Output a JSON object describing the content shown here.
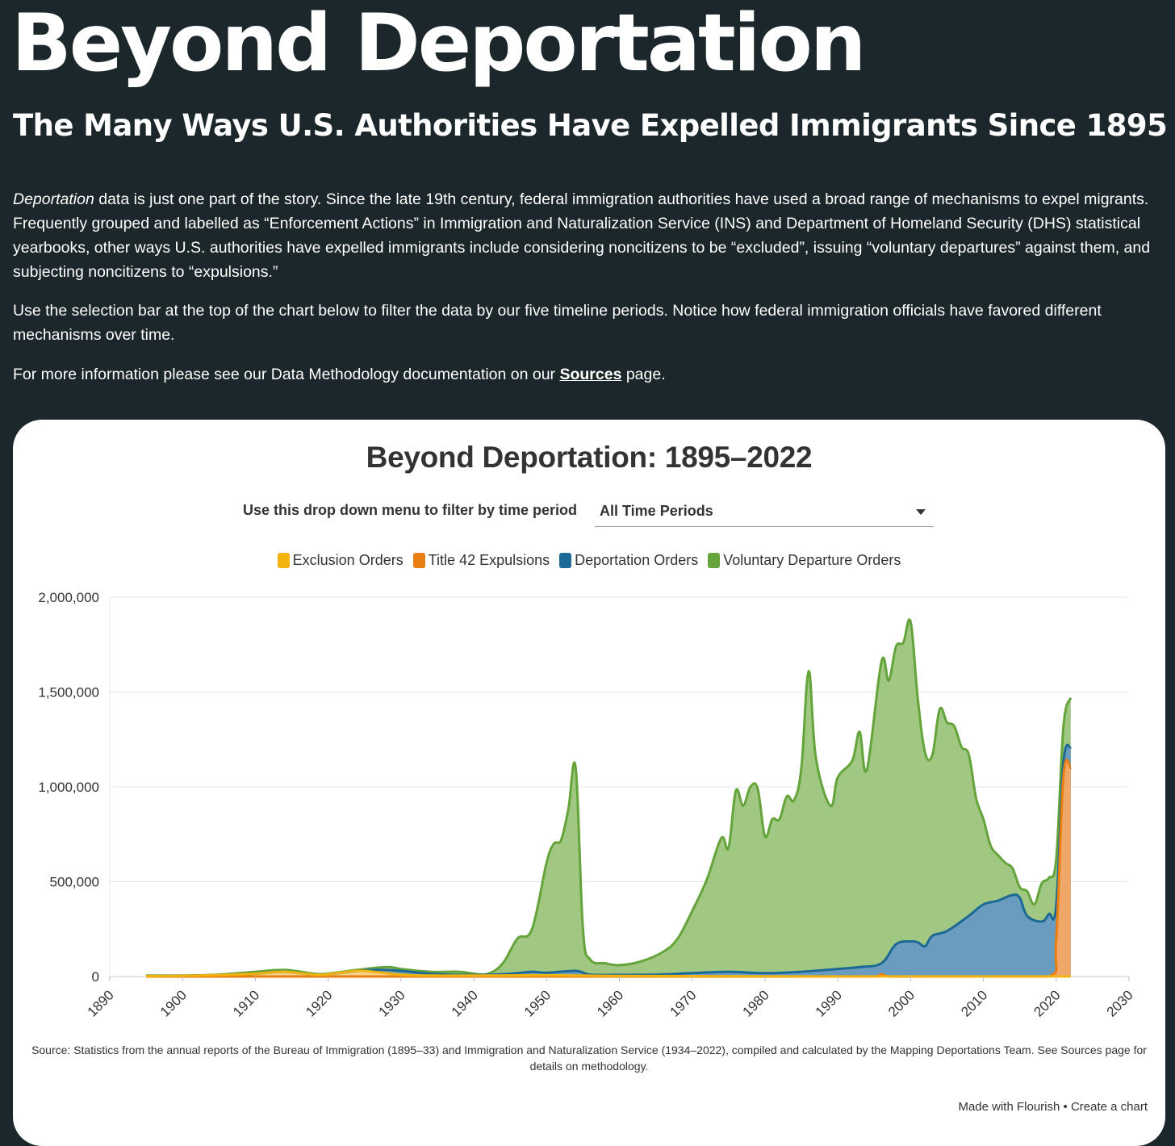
{
  "page": {
    "title": "Beyond Deportation",
    "subtitle": "The Many Ways U.S. Authorities Have Expelled Immigrants Since 1895",
    "intro": {
      "p1_em": "Deportation",
      "p1_rest": " data is just one part of the story. Since the late 19th century, federal immigration authorities have used a broad range of mechanisms to expel migrants. Frequently grouped and labelled as “Enforcement Actions” in Immigration and Naturalization Service (INS) and Department of Homeland Security (DHS) statistical yearbooks, other ways U.S. authorities have expelled immigrants include considering noncitizens to be “excluded”, issuing “voluntary departures” against them, and subjecting noncitizens to “expulsions.”",
      "p2": "Use the selection bar at the top of the chart below to filter the data by our five timeline periods. Notice how federal immigration officials have favored different mechanisms over time.",
      "p3_before": "For more information please see our Data Methodology documentation on our ",
      "p3_link": "Sources",
      "p3_after": " page."
    }
  },
  "filter": {
    "label": "Use this drop down menu to filter by time period",
    "selected": "All Time Periods"
  },
  "credit": {
    "made_with": "Made with Flourish",
    "separator": "•",
    "create": "Create a chart"
  },
  "chart_data": {
    "type": "area",
    "title": "Beyond Deportation: 1895–2022",
    "xlabel": "",
    "ylabel": "",
    "xlim": [
      1890,
      2030
    ],
    "ylim": [
      0,
      2000000
    ],
    "x_ticks": [
      1890,
      1900,
      1910,
      1920,
      1930,
      1940,
      1950,
      1960,
      1970,
      1980,
      1990,
      2000,
      2010,
      2020,
      2030
    ],
    "y_ticks": [
      0,
      500000,
      1000000,
      1500000,
      2000000
    ],
    "y_tick_labels": [
      "0",
      "500,000",
      "1,000,000",
      "1,500,000",
      "2,000,000"
    ],
    "grid": true,
    "stacked": true,
    "legend_position": "top",
    "source": "Source: Statistics from the annual reports of the Bureau of Immigration (1895–33) and Immigration and Naturalization Service (1934–2022), compiled and calculated by the Mapping Deportations Team. See Sources page for details on methodology.",
    "series": [
      {
        "name": "Exclusion Orders",
        "color": "#f3b30e",
        "fill": "#f3d389",
        "points": [
          [
            1895,
            2000
          ],
          [
            1900,
            4000
          ],
          [
            1905,
            8000
          ],
          [
            1910,
            15000
          ],
          [
            1914,
            25000
          ],
          [
            1918,
            10000
          ],
          [
            1920,
            12000
          ],
          [
            1924,
            30000
          ],
          [
            1927,
            22000
          ],
          [
            1930,
            10000
          ],
          [
            1934,
            5000
          ],
          [
            1940,
            5000
          ],
          [
            1945,
            6000
          ],
          [
            1950,
            7000
          ],
          [
            1955,
            5000
          ],
          [
            1960,
            3000
          ],
          [
            1970,
            2000
          ],
          [
            1980,
            1000
          ],
          [
            1990,
            500
          ],
          [
            2000,
            1000
          ],
          [
            2010,
            500
          ],
          [
            2017,
            500
          ],
          [
            2022,
            500
          ]
        ]
      },
      {
        "name": "Title 42 Expulsions",
        "color": "#e97e12",
        "fill": "#f0a868",
        "points": [
          [
            1895,
            0
          ],
          [
            1900,
            0
          ],
          [
            1905,
            0
          ],
          [
            1910,
            0
          ],
          [
            1914,
            0
          ],
          [
            1918,
            0
          ],
          [
            1920,
            0
          ],
          [
            1924,
            0
          ],
          [
            1927,
            0
          ],
          [
            1930,
            0
          ],
          [
            1934,
            0
          ],
          [
            1940,
            0
          ],
          [
            1945,
            0
          ],
          [
            1950,
            0
          ],
          [
            1955,
            0
          ],
          [
            1960,
            0
          ],
          [
            1970,
            0
          ],
          [
            1980,
            0
          ],
          [
            1990,
            0
          ],
          [
            1995,
            0
          ],
          [
            1996,
            12000
          ],
          [
            1997,
            0
          ],
          [
            2000,
            0
          ],
          [
            2010,
            0
          ],
          [
            2019,
            0
          ],
          [
            2020,
            200000
          ],
          [
            2021,
            1060000
          ],
          [
            2022,
            1100000
          ]
        ]
      },
      {
        "name": "Deportation Orders",
        "color": "#1d6995",
        "fill": "#6a9cbf",
        "points": [
          [
            1895,
            2000
          ],
          [
            1900,
            4000
          ],
          [
            1905,
            8000
          ],
          [
            1910,
            15000
          ],
          [
            1914,
            25000
          ],
          [
            1918,
            10000
          ],
          [
            1920,
            12000
          ],
          [
            1924,
            30000
          ],
          [
            1927,
            35000
          ],
          [
            1930,
            30000
          ],
          [
            1934,
            15000
          ],
          [
            1940,
            8000
          ],
          [
            1945,
            15000
          ],
          [
            1948,
            25000
          ],
          [
            1950,
            20000
          ],
          [
            1954,
            30000
          ],
          [
            1956,
            10000
          ],
          [
            1960,
            9000
          ],
          [
            1965,
            10000
          ],
          [
            1970,
            18000
          ],
          [
            1975,
            25000
          ],
          [
            1980,
            18000
          ],
          [
            1985,
            25000
          ],
          [
            1990,
            40000
          ],
          [
            1993,
            50000
          ],
          [
            1996,
            70000
          ],
          [
            1998,
            170000
          ],
          [
            2000,
            185000
          ],
          [
            2001,
            180000
          ],
          [
            2002,
            160000
          ],
          [
            2003,
            215000
          ],
          [
            2005,
            240000
          ],
          [
            2008,
            320000
          ],
          [
            2010,
            380000
          ],
          [
            2012,
            400000
          ],
          [
            2014,
            430000
          ],
          [
            2015,
            415000
          ],
          [
            2016,
            320000
          ],
          [
            2018,
            290000
          ],
          [
            2019,
            330000
          ],
          [
            2020,
            375000
          ],
          [
            2021,
            1130000
          ],
          [
            2022,
            1210000
          ]
        ]
      },
      {
        "name": "Voluntary Departure Orders",
        "color": "#64a43b",
        "fill": "#a1c882",
        "points": [
          [
            1895,
            5000
          ],
          [
            1900,
            5000
          ],
          [
            1905,
            10000
          ],
          [
            1910,
            25000
          ],
          [
            1914,
            35000
          ],
          [
            1918,
            15000
          ],
          [
            1920,
            15000
          ],
          [
            1924,
            35000
          ],
          [
            1928,
            50000
          ],
          [
            1930,
            40000
          ],
          [
            1934,
            25000
          ],
          [
            1938,
            25000
          ],
          [
            1940,
            15000
          ],
          [
            1942,
            15000
          ],
          [
            1944,
            70000
          ],
          [
            1946,
            200000
          ],
          [
            1948,
            250000
          ],
          [
            1950,
            600000
          ],
          [
            1951,
            700000
          ],
          [
            1952,
            720000
          ],
          [
            1953,
            885000
          ],
          [
            1954,
            1100000
          ],
          [
            1955,
            250000
          ],
          [
            1956,
            90000
          ],
          [
            1958,
            70000
          ],
          [
            1960,
            60000
          ],
          [
            1963,
            80000
          ],
          [
            1966,
            130000
          ],
          [
            1968,
            200000
          ],
          [
            1970,
            345000
          ],
          [
            1972,
            510000
          ],
          [
            1974,
            730000
          ],
          [
            1975,
            680000
          ],
          [
            1976,
            980000
          ],
          [
            1977,
            900000
          ],
          [
            1978,
            1000000
          ],
          [
            1979,
            990000
          ],
          [
            1980,
            740000
          ],
          [
            1981,
            830000
          ],
          [
            1982,
            830000
          ],
          [
            1983,
            950000
          ],
          [
            1984,
            930000
          ],
          [
            1985,
            1100000
          ],
          [
            1986,
            1610000
          ],
          [
            1987,
            1150000
          ],
          [
            1989,
            900000
          ],
          [
            1990,
            1050000
          ],
          [
            1992,
            1140000
          ],
          [
            1993,
            1290000
          ],
          [
            1994,
            1090000
          ],
          [
            1996,
            1660000
          ],
          [
            1997,
            1560000
          ],
          [
            1998,
            1740000
          ],
          [
            1999,
            1760000
          ],
          [
            2000,
            1870000
          ],
          [
            2001,
            1460000
          ],
          [
            2002,
            1180000
          ],
          [
            2003,
            1170000
          ],
          [
            2004,
            1410000
          ],
          [
            2005,
            1340000
          ],
          [
            2006,
            1320000
          ],
          [
            2007,
            1210000
          ],
          [
            2008,
            1170000
          ],
          [
            2009,
            940000
          ],
          [
            2010,
            830000
          ],
          [
            2011,
            690000
          ],
          [
            2012,
            640000
          ],
          [
            2013,
            600000
          ],
          [
            2014,
            570000
          ],
          [
            2015,
            470000
          ],
          [
            2016,
            450000
          ],
          [
            2017,
            380000
          ],
          [
            2018,
            490000
          ],
          [
            2019,
            520000
          ],
          [
            2020,
            620000
          ],
          [
            2021,
            1320000
          ],
          [
            2022,
            1470000
          ]
        ]
      }
    ]
  }
}
